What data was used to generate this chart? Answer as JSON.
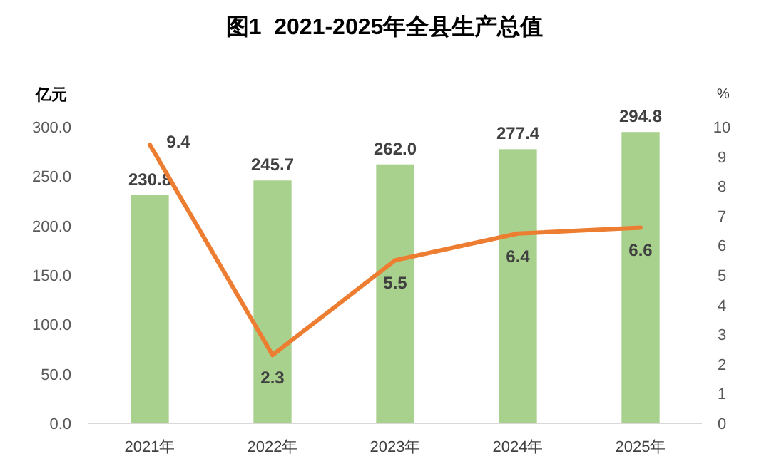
{
  "chart_data": {
    "type": "bar",
    "title": "图1  2021-2025年全县生产总值",
    "ylabel": "亿元",
    "y2label": "%",
    "categories": [
      "2021年",
      "2022年",
      "2023年",
      "2024年",
      "2025年"
    ],
    "series": [
      {
        "color": "#a9d18e",
        "values": [
          230.8,
          245.7,
          262.0,
          277.4,
          294.8
        ],
        "value_labels": [
          "230.8",
          "245.7",
          "262.0",
          "277.4",
          "294.8"
        ]
      },
      {
        "type": "line",
        "axis": "y2",
        "color": "#ed7d31",
        "values": [
          9.4,
          2.3,
          5.5,
          6.4,
          6.6
        ],
        "value_labels": [
          "9.4",
          "2.3",
          "5.5",
          "6.4",
          "6.6"
        ]
      }
    ],
    "ylim": [
      0,
      300
    ],
    "yticks": [
      {
        "value": 0,
        "label": "0.0"
      },
      {
        "value": 50,
        "label": "50.0"
      },
      {
        "value": 100,
        "label": "100.0"
      },
      {
        "value": 150,
        "label": "150.0"
      },
      {
        "value": 200,
        "label": "200.0"
      },
      {
        "value": 250,
        "label": "250.0"
      },
      {
        "value": 300,
        "label": "300.0"
      }
    ],
    "y2lim": [
      0,
      10
    ],
    "y2ticks": [
      0,
      1,
      2,
      3,
      4,
      5,
      6,
      7,
      8,
      9,
      10
    ],
    "grid": false
  }
}
